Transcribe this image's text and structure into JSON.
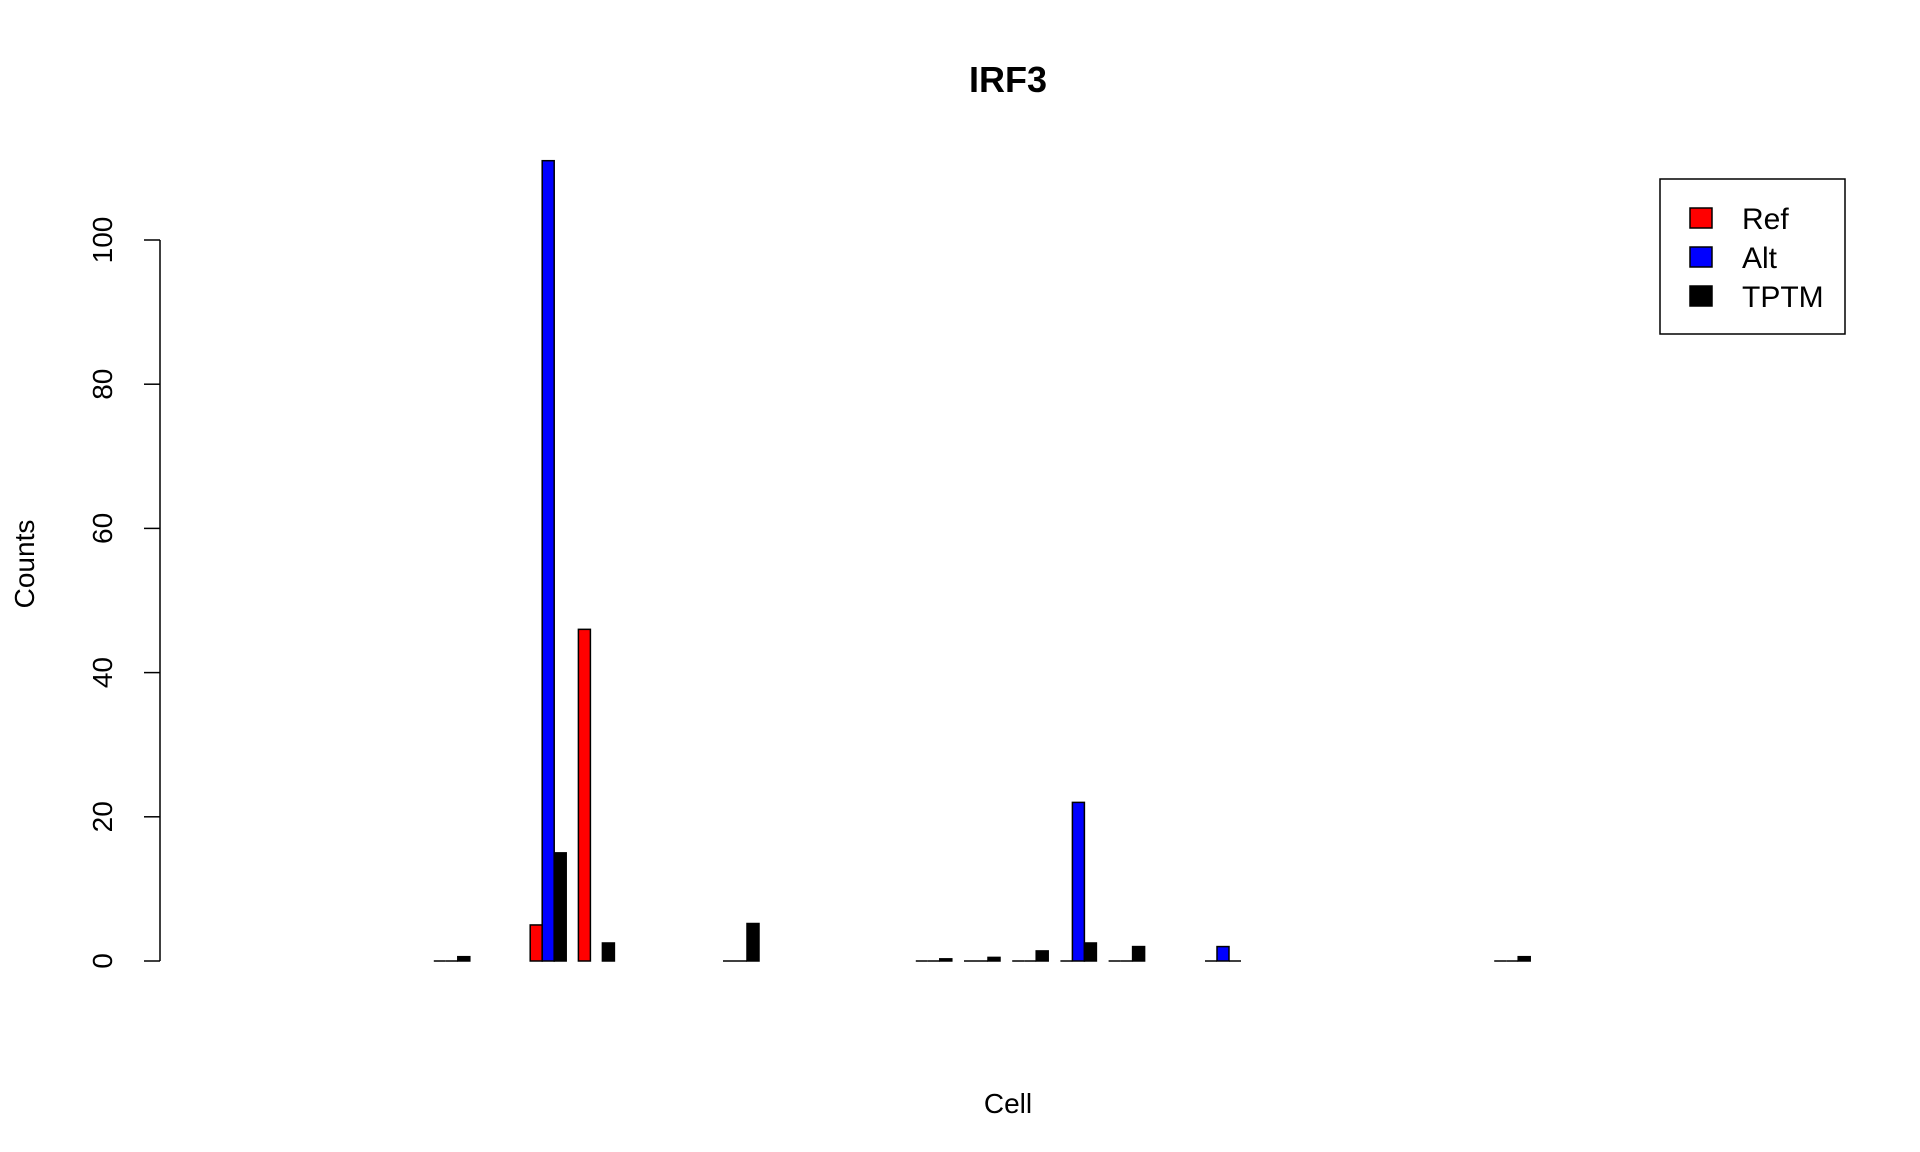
{
  "chart_data": {
    "type": "bar",
    "title": "IRF3",
    "xlabel": "Cell",
    "ylabel": "Counts",
    "ylim": [
      0,
      114
    ],
    "yticks": [
      0,
      20,
      40,
      60,
      80,
      100
    ],
    "grid": false,
    "legend_position": "top-right",
    "num_groups": 36,
    "series": [
      {
        "name": "Ref",
        "color": "#ff0000",
        "values": [
          0,
          0,
          0,
          0,
          0,
          0,
          0,
          0,
          0,
          0,
          0,
          5,
          46,
          0,
          0,
          0,
          0,
          0,
          0,
          0,
          0,
          0,
          0,
          0,
          0,
          0,
          0,
          0,
          0,
          0,
          0,
          0,
          0,
          0,
          0,
          0
        ]
      },
      {
        "name": "Alt",
        "color": "#0000ff",
        "values": [
          0,
          0,
          0,
          0,
          0,
          0,
          0,
          0,
          0,
          0,
          0,
          111,
          0,
          0,
          0,
          0,
          0,
          0,
          0,
          0,
          0,
          0,
          22,
          0,
          0,
          2,
          0,
          0,
          0,
          0,
          0,
          0,
          0,
          0,
          0,
          0
        ]
      },
      {
        "name": "TPTM",
        "color": "#000000",
        "values": [
          0,
          0,
          0,
          0,
          0,
          0,
          0,
          0,
          0,
          0.6,
          0,
          15,
          2.5,
          0,
          0,
          5.2,
          0,
          0,
          0,
          0.3,
          0.5,
          1.4,
          2.5,
          2,
          0,
          0,
          0,
          0,
          0,
          0,
          0,
          0.6,
          0,
          0,
          0,
          0
        ]
      }
    ],
    "zero_stub_groups": [
      9,
      15,
      19,
      20,
      21,
      22,
      23,
      25,
      31
    ]
  }
}
